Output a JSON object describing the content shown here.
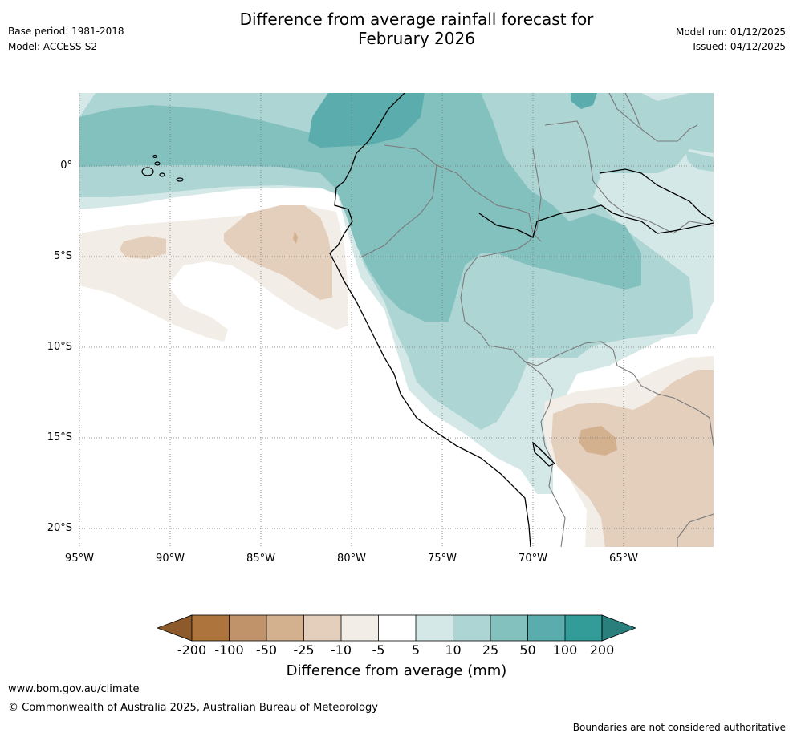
{
  "header": {
    "title_line1": "Difference from average rainfall forecast for",
    "title_line2": "February 2026",
    "base_period": "Base period: 1981-2018",
    "model": "Model: ACCESS-S2",
    "model_run": "Model run: 01/12/2025",
    "issued": "Issued: 04/12/2025"
  },
  "map": {
    "lat_labels": [
      "0°",
      "5°S",
      "10°S",
      "15°S",
      "20°S"
    ],
    "lon_labels": [
      "95°W",
      "90°W",
      "85°W",
      "80°W",
      "75°W",
      "70°W",
      "65°W"
    ]
  },
  "colorbar": {
    "title": "Difference from average (mm)",
    "ticks": [
      "-200",
      "-100",
      "-50",
      "-25",
      "-10",
      "-5",
      "5",
      "10",
      "25",
      "50",
      "100",
      "200"
    ],
    "colors": {
      "below_min": "#8c5a2b",
      "dry_100_200": "#ad743d",
      "dry_50_100": "#c1936a",
      "dry_25_50": "#d3b18f",
      "dry_10_25": "#e3cfbc",
      "dry_5_10": "#f2ede7",
      "neutral": "#ffffff",
      "wet_5_10": "#d4e8e7",
      "wet_10_25": "#acd5d4",
      "wet_25_50": "#83c1bf",
      "wet_50_100": "#5aadac",
      "wet_100_200": "#339b98",
      "above_max": "#2a7f7c"
    }
  },
  "footer": {
    "website": "www.bom.gov.au/climate",
    "copyright": "© Commonwealth of Australia 2025, Australian Bureau of Meteorology",
    "disclaimer": "Boundaries are not considered authoritative"
  }
}
